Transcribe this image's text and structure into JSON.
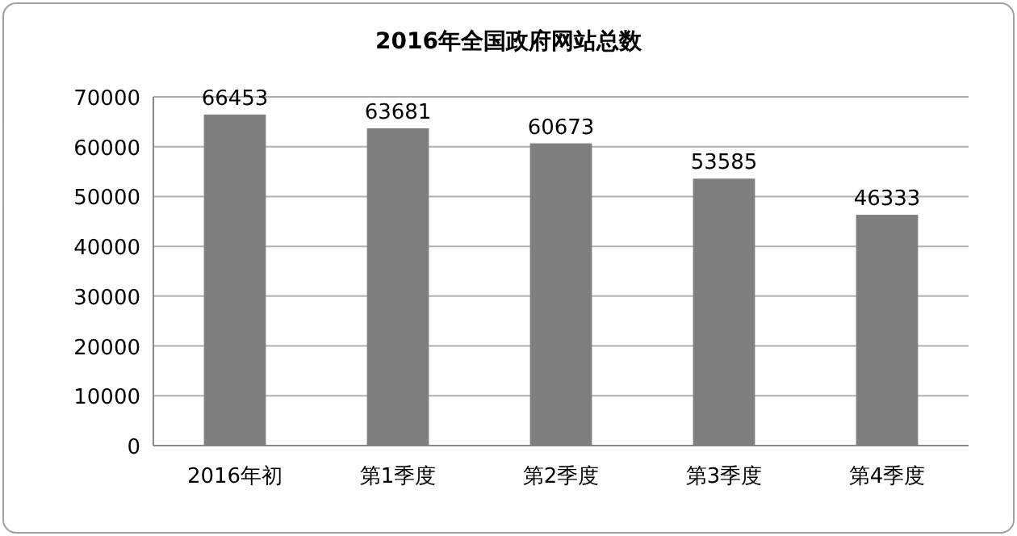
{
  "chart_data": {
    "type": "bar",
    "title": "2016年全国政府网站总数",
    "categories": [
      "2016年初",
      "第1季度",
      "第2季度",
      "第3季度",
      "第4季度"
    ],
    "values": [
      66453,
      63681,
      60673,
      53585,
      46333
    ],
    "color": "#7f7f7f",
    "ylim": [
      0,
      70000
    ],
    "yticks": [
      0,
      10000,
      20000,
      30000,
      40000,
      50000,
      60000,
      70000
    ],
    "grid": "y",
    "data_labels": true
  }
}
